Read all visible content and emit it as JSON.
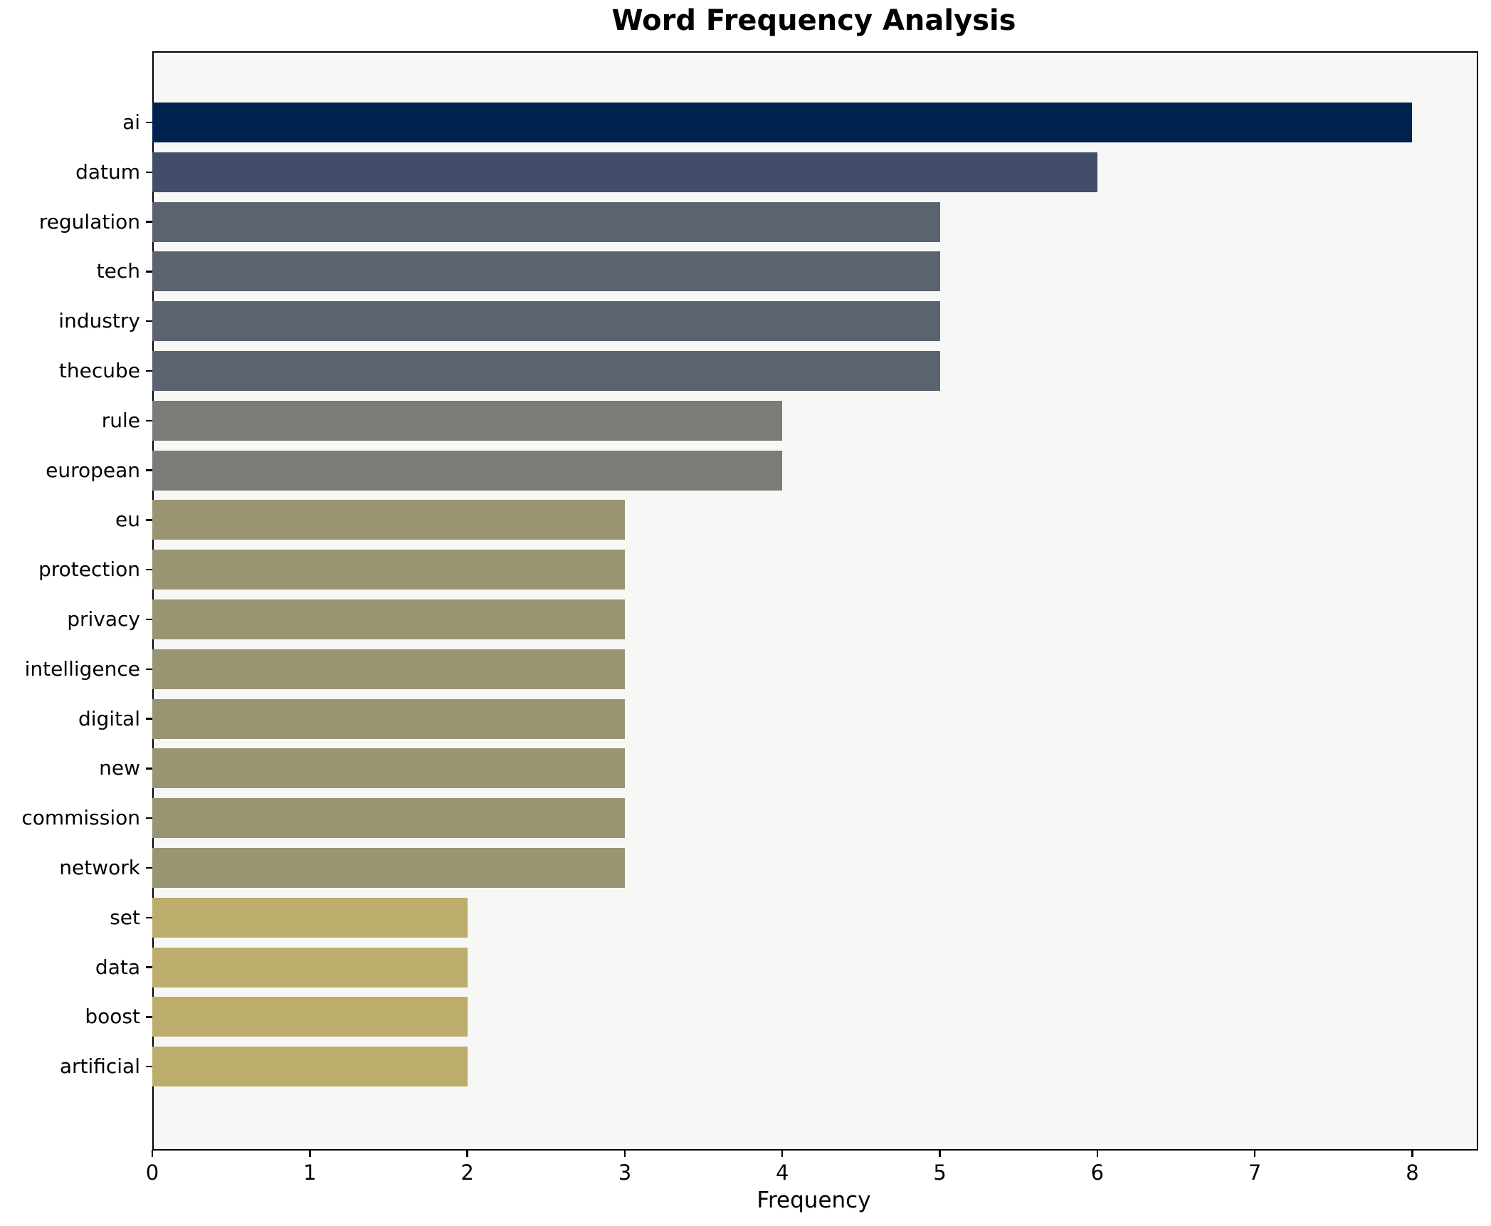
{
  "title": "Word Frequency Analysis",
  "chart_data": {
    "type": "bar",
    "orientation": "horizontal",
    "title": "Word Frequency Analysis",
    "xlabel": "Frequency",
    "ylabel": "",
    "categories": [
      "ai",
      "datum",
      "regulation",
      "tech",
      "industry",
      "thecube",
      "rule",
      "european",
      "eu",
      "protection",
      "privacy",
      "intelligence",
      "digital",
      "new",
      "commission",
      "network",
      "set",
      "data",
      "boost",
      "artificial"
    ],
    "values": [
      8,
      6,
      5,
      5,
      5,
      5,
      4,
      4,
      3,
      3,
      3,
      3,
      3,
      3,
      3,
      3,
      2,
      2,
      2,
      2
    ],
    "bar_colors": [
      "#00224e",
      "#414d6b",
      "#5c6370",
      "#5c6370",
      "#5c6370",
      "#5c6370",
      "#7b7b77",
      "#7b7b77",
      "#999472",
      "#999472",
      "#999472",
      "#999472",
      "#999472",
      "#999472",
      "#999472",
      "#999472",
      "#bcad6d",
      "#bcad6d",
      "#bcad6d",
      "#bcad6d"
    ],
    "x_ticks": [
      0,
      1,
      2,
      3,
      4,
      5,
      6,
      7,
      8
    ],
    "xlim": [
      0,
      8.4
    ],
    "grid": false,
    "legend": null,
    "plot_bg": "#f7f7f5",
    "fig_bg": "#ffffff",
    "spine_color": "#000000"
  }
}
